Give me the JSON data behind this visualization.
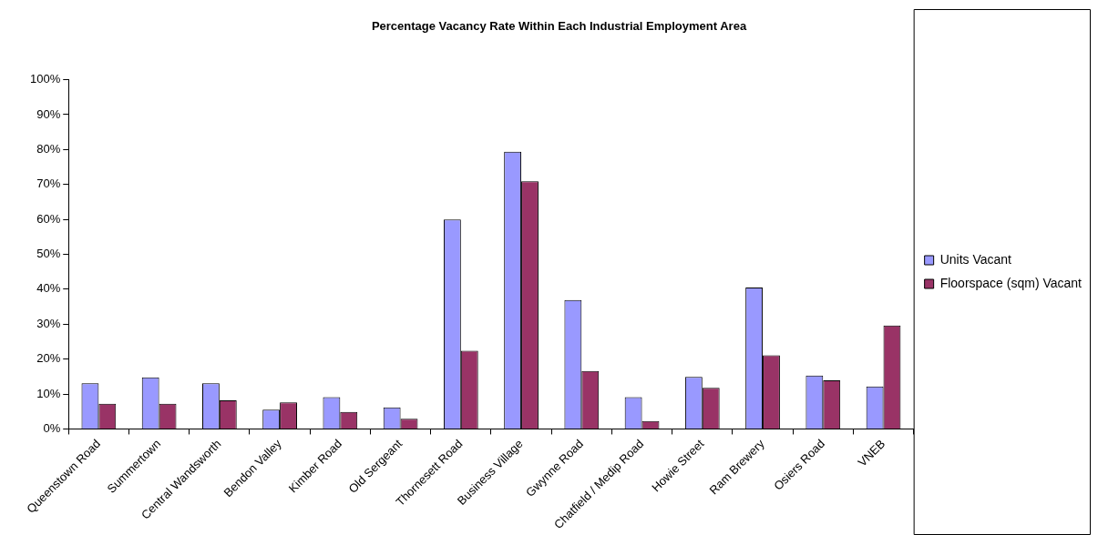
{
  "chart_data": {
    "type": "bar",
    "title": "Percentage Vacancy Rate Within Each Industrial Employment Area",
    "categories": [
      "Queenstown Road",
      "Summertown",
      "Central Wandsworth",
      "Bendon Valley",
      "Kimber Road",
      "Old Sergeant",
      "Thornesett Road",
      "Business Village",
      "Gwynne Road",
      "Chatfield / Medip Road",
      "Howie Street",
      "Ram Brewery",
      "Osiers Road",
      "VNEB"
    ],
    "series": [
      {
        "name": "Units Vacant",
        "color": "#9999ff",
        "values": [
          13.1,
          14.8,
          13.1,
          5.5,
          9.1,
          6.2,
          60.0,
          79.4,
          36.9,
          9.1,
          14.9,
          40.5,
          15.3,
          12.2
        ]
      },
      {
        "name": "Floorspace (sqm) Vacant",
        "color": "#993366",
        "values": [
          7.2,
          7.2,
          8.2,
          7.6,
          4.9,
          2.9,
          22.4,
          70.9,
          16.6,
          2.3,
          11.8,
          21.1,
          13.9,
          29.6
        ]
      }
    ],
    "ylim": [
      0,
      100
    ],
    "yticks": [
      {
        "value": 0,
        "label": "0%"
      },
      {
        "value": 10,
        "label": "10%"
      },
      {
        "value": 20,
        "label": "20%"
      },
      {
        "value": 30,
        "label": "30%"
      },
      {
        "value": 40,
        "label": "40%"
      },
      {
        "value": 50,
        "label": "50%"
      },
      {
        "value": 60,
        "label": "60%"
      },
      {
        "value": 70,
        "label": "70%"
      },
      {
        "value": 80,
        "label": "80%"
      },
      {
        "value": 90,
        "label": "90%"
      },
      {
        "value": 100,
        "label": "100%"
      }
    ],
    "grid": false,
    "legend": "right"
  }
}
